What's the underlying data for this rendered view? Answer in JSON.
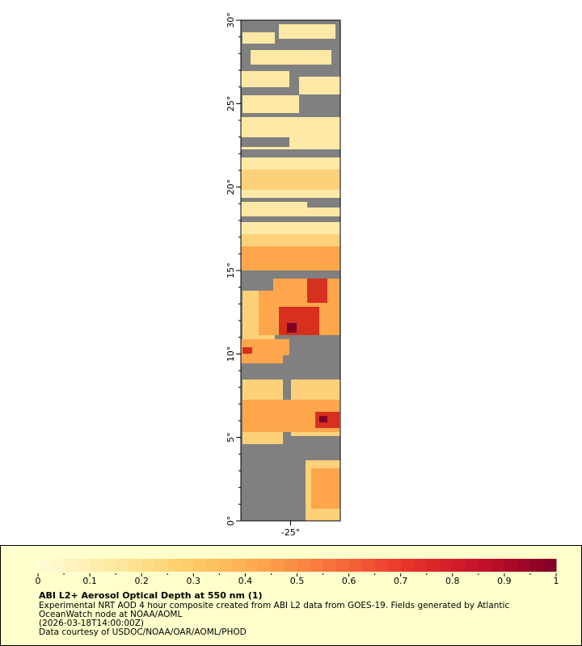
{
  "chart_data": {
    "type": "map",
    "title": "ABI L2+ Aerosol Optical Depth at 550 nm (1)",
    "caption": [
      "Experimental NRT AOD 4 hour composite created from ABI L2 data from GOES-19. Fields generated by Atlantic",
      "OceanWatch node at NOAA/AOML",
      "(2026-03-18T14:00:00Z)",
      "Data courtesy of USDOC/NOAA/OAR/AOML/PHOD"
    ],
    "xlim": [
      -28,
      -22
    ],
    "ylim": [
      0,
      30
    ],
    "xticks": [
      {
        "value": -25,
        "label": "-25°"
      }
    ],
    "yticks": [
      {
        "value": 0,
        "label": "0°"
      },
      {
        "value": 5,
        "label": "5°"
      },
      {
        "value": 10,
        "label": "10°"
      },
      {
        "value": 15,
        "label": "15°"
      },
      {
        "value": 20,
        "label": "20°"
      },
      {
        "value": 25,
        "label": "25°"
      },
      {
        "value": 30,
        "label": "30°"
      }
    ],
    "clim": [
      0,
      1
    ],
    "cticks": [
      0,
      0.1,
      0.2,
      0.3,
      0.4,
      0.5,
      0.6,
      0.7,
      0.8,
      0.9,
      1
    ],
    "palette": [
      "#fffcd8",
      "#fde9a0",
      "#fdce6a",
      "#fda64c",
      "#f8703a",
      "#e8322a",
      "#c5112a",
      "#800026"
    ]
  }
}
